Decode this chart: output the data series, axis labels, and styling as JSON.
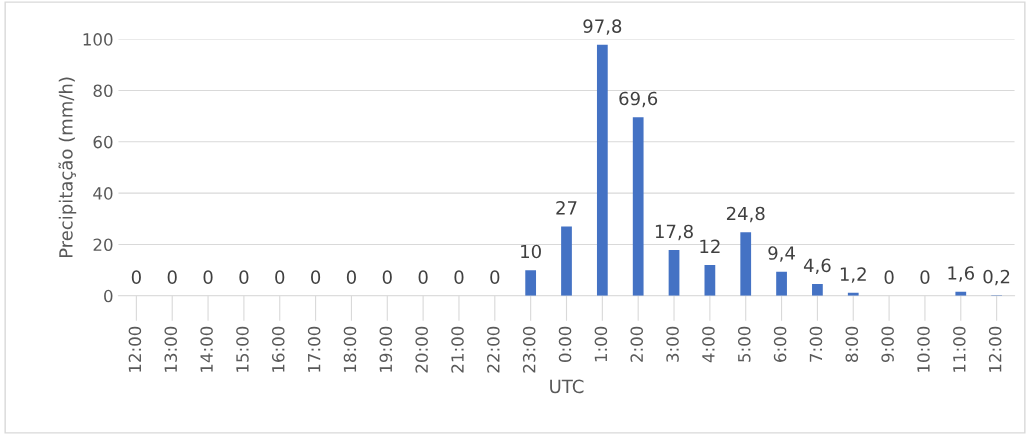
{
  "chart_data": {
    "type": "bar",
    "xlabel": "UTC",
    "ylabel": "Precipitação (mm/h)",
    "categories": [
      "12:00",
      "13:00",
      "14:00",
      "15:00",
      "16:00",
      "17:00",
      "18:00",
      "19:00",
      "20:00",
      "21:00",
      "22:00",
      "23:00",
      "0:00",
      "1:00",
      "2:00",
      "3:00",
      "4:00",
      "5:00",
      "6:00",
      "7:00",
      "8:00",
      "9:00",
      "10:00",
      "11:00",
      "12:00"
    ],
    "values": [
      0,
      0,
      0,
      0,
      0,
      0,
      0,
      0,
      0,
      0,
      0,
      10,
      27,
      97.8,
      69.6,
      17.8,
      12,
      24.8,
      9.4,
      4.6,
      1.2,
      0,
      0,
      1.6,
      0.2
    ],
    "value_labels": [
      "0",
      "0",
      "0",
      "0",
      "0",
      "0",
      "0",
      "0",
      "0",
      "0",
      "0",
      "10",
      "27",
      "97,8",
      "69,6",
      "17,8",
      "12",
      "24,8",
      "9,4",
      "4,6",
      "1,2",
      "0",
      "0",
      "1,6",
      "0,2"
    ],
    "color": "#4472c4",
    "ylim": [
      0,
      100
    ],
    "yticks": [
      0,
      20,
      40,
      60,
      80,
      100
    ],
    "grid": "y",
    "legend": false
  }
}
